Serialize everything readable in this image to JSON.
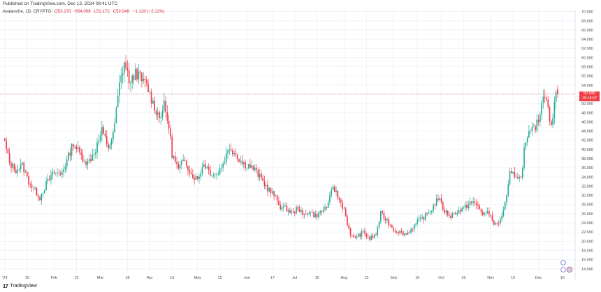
{
  "header": {
    "published": "Published on TradingView.com, Dec 13, 2024 08:41 UTC",
    "symbol": "Avalanche, 1D, CRYPTO",
    "open": "O53.170",
    "high": "H54.006",
    "low": "L51.172",
    "close": "C52.049",
    "change": "−1.120 (−2.11%)"
  },
  "price_tag": {
    "price": "52.049",
    "countdown": "15:18:07"
  },
  "footer": {
    "brand": "TradingView"
  },
  "colors": {
    "up": "#22ab94",
    "down": "#f23645",
    "grid": "#f0f3fa",
    "axis_text": "#4a4a4a"
  },
  "chart_data": {
    "type": "candlestick",
    "title": "",
    "y_ticks": [
      "70.000",
      "68.000",
      "66.000",
      "64.000",
      "62.000",
      "60.000",
      "58.000",
      "56.000",
      "54.000",
      "52.000",
      "50.000",
      "48.000",
      "46.000",
      "44.000",
      "42.000",
      "40.000",
      "38.000",
      "36.000",
      "34.000",
      "32.000",
      "30.000",
      "28.000",
      "26.000",
      "24.000",
      "22.000",
      "20.000",
      "18.000",
      "16.000",
      "14.000"
    ],
    "ylim": [
      12.9,
      70.4
    ],
    "x_ticks": [
      {
        "label": "'24",
        "date": "2024-01-01"
      },
      {
        "label": "15",
        "date": "2024-01-15"
      },
      {
        "label": "Feb",
        "date": "2024-02-01"
      },
      {
        "label": "15",
        "date": "2024-02-15"
      },
      {
        "label": "Mar",
        "date": "2024-03-01"
      },
      {
        "label": "18",
        "date": "2024-03-18"
      },
      {
        "label": "Apr",
        "date": "2024-04-01"
      },
      {
        "label": "15",
        "date": "2024-04-15"
      },
      {
        "label": "May",
        "date": "2024-05-01"
      },
      {
        "label": "15",
        "date": "2024-05-15"
      },
      {
        "label": "Jun",
        "date": "2024-06-01"
      },
      {
        "label": "17",
        "date": "2024-06-17"
      },
      {
        "label": "Jul",
        "date": "2024-07-01"
      },
      {
        "label": "15",
        "date": "2024-07-15"
      },
      {
        "label": "Aug",
        "date": "2024-08-01"
      },
      {
        "label": "15",
        "date": "2024-08-15"
      },
      {
        "label": "Sep",
        "date": "2024-09-01"
      },
      {
        "label": "16",
        "date": "2024-09-16"
      },
      {
        "label": "Oct",
        "date": "2024-10-01"
      },
      {
        "label": "15",
        "date": "2024-10-15"
      },
      {
        "label": "Nov",
        "date": "2024-11-01"
      },
      {
        "label": "15",
        "date": "2024-11-15"
      },
      {
        "label": "Dec",
        "date": "2024-12-01"
      },
      {
        "label": "16",
        "date": "2024-12-16"
      }
    ],
    "x_range": [
      "2023-12-29",
      "2024-12-24"
    ],
    "current_price": 52.049,
    "anchors": [
      [
        "2024-01-01",
        41.5
      ],
      [
        "2024-01-04",
        37.0
      ],
      [
        "2024-01-08",
        35.5
      ],
      [
        "2024-01-12",
        36.5
      ],
      [
        "2024-01-16",
        33.0
      ],
      [
        "2024-01-20",
        31.0
      ],
      [
        "2024-01-23",
        29.5
      ],
      [
        "2024-01-27",
        32.5
      ],
      [
        "2024-02-01",
        35.0
      ],
      [
        "2024-02-05",
        34.5
      ],
      [
        "2024-02-09",
        37.5
      ],
      [
        "2024-02-13",
        41.5
      ],
      [
        "2024-02-18",
        38.5
      ],
      [
        "2024-02-22",
        37.0
      ],
      [
        "2024-02-27",
        40.0
      ],
      [
        "2024-03-02",
        44.0
      ],
      [
        "2024-03-06",
        40.5
      ],
      [
        "2024-03-09",
        43.0
      ],
      [
        "2024-03-13",
        54.0
      ],
      [
        "2024-03-16",
        59.0
      ],
      [
        "2024-03-20",
        54.0
      ],
      [
        "2024-03-23",
        57.0
      ],
      [
        "2024-03-27",
        55.0
      ],
      [
        "2024-03-30",
        54.0
      ],
      [
        "2024-04-03",
        50.0
      ],
      [
        "2024-04-07",
        47.0
      ],
      [
        "2024-04-10",
        49.5
      ],
      [
        "2024-04-13",
        45.0
      ],
      [
        "2024-04-15",
        39.0
      ],
      [
        "2024-04-19",
        35.5
      ],
      [
        "2024-04-23",
        38.0
      ],
      [
        "2024-04-27",
        34.5
      ],
      [
        "2024-05-01",
        33.5
      ],
      [
        "2024-05-05",
        37.0
      ],
      [
        "2024-05-09",
        35.0
      ],
      [
        "2024-05-13",
        34.5
      ],
      [
        "2024-05-17",
        37.0
      ],
      [
        "2024-05-21",
        40.5
      ],
      [
        "2024-05-25",
        39.0
      ],
      [
        "2024-05-29",
        37.0
      ],
      [
        "2024-06-02",
        36.5
      ],
      [
        "2024-06-06",
        35.5
      ],
      [
        "2024-06-10",
        33.5
      ],
      [
        "2024-06-14",
        31.5
      ],
      [
        "2024-06-18",
        30.0
      ],
      [
        "2024-06-22",
        27.5
      ],
      [
        "2024-06-26",
        27.0
      ],
      [
        "2024-06-30",
        26.0
      ],
      [
        "2024-07-03",
        27.5
      ],
      [
        "2024-07-06",
        25.5
      ],
      [
        "2024-07-10",
        26.5
      ],
      [
        "2024-07-14",
        25.5
      ],
      [
        "2024-07-18",
        26.5
      ],
      [
        "2024-07-22",
        28.0
      ],
      [
        "2024-07-25",
        32.0
      ],
      [
        "2024-07-29",
        29.0
      ],
      [
        "2024-08-01",
        27.0
      ],
      [
        "2024-08-05",
        21.0
      ],
      [
        "2024-08-09",
        21.0
      ],
      [
        "2024-08-13",
        22.0
      ],
      [
        "2024-08-17",
        20.5
      ],
      [
        "2024-08-21",
        21.5
      ],
      [
        "2024-08-24",
        26.0
      ],
      [
        "2024-08-28",
        24.5
      ],
      [
        "2024-09-01",
        22.5
      ],
      [
        "2024-09-05",
        22.0
      ],
      [
        "2024-09-09",
        21.5
      ],
      [
        "2024-09-13",
        23.0
      ],
      [
        "2024-09-17",
        24.5
      ],
      [
        "2024-09-21",
        25.5
      ],
      [
        "2024-09-25",
        27.0
      ],
      [
        "2024-09-29",
        29.5
      ],
      [
        "2024-10-03",
        26.5
      ],
      [
        "2024-10-07",
        25.5
      ],
      [
        "2024-10-11",
        26.5
      ],
      [
        "2024-10-15",
        27.0
      ],
      [
        "2024-10-19",
        28.5
      ],
      [
        "2024-10-23",
        28.0
      ],
      [
        "2024-10-27",
        26.0
      ],
      [
        "2024-10-31",
        26.0
      ],
      [
        "2024-11-04",
        23.5
      ],
      [
        "2024-11-07",
        24.5
      ],
      [
        "2024-11-11",
        29.5
      ],
      [
        "2024-11-13",
        34.5
      ],
      [
        "2024-11-17",
        34.5
      ],
      [
        "2024-11-20",
        33.5
      ],
      [
        "2024-11-22",
        40.0
      ],
      [
        "2024-11-25",
        43.0
      ],
      [
        "2024-11-28",
        44.5
      ],
      [
        "2024-12-01",
        46.0
      ],
      [
        "2024-12-03",
        51.0
      ],
      [
        "2024-12-06",
        52.0
      ],
      [
        "2024-12-09",
        44.5
      ],
      [
        "2024-12-11",
        49.5
      ],
      [
        "2024-12-12",
        53.1
      ],
      [
        "2024-12-13",
        52.049
      ]
    ]
  }
}
